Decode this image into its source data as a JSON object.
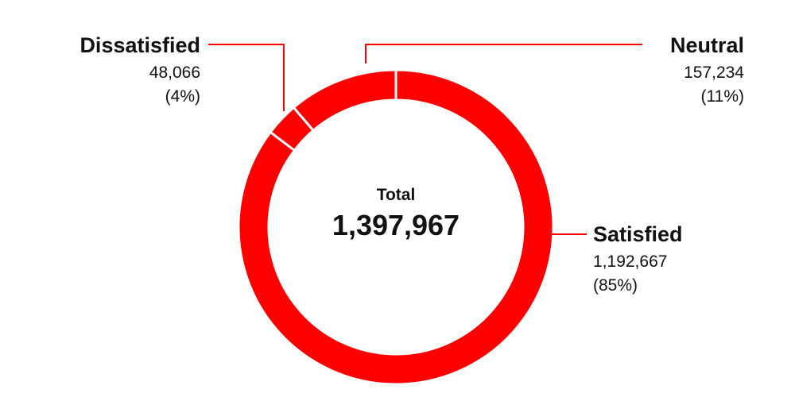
{
  "chart_data": {
    "type": "pie",
    "categories": [
      "Satisfied",
      "Dissatisfied",
      "Neutral"
    ],
    "values": [
      1192667,
      48066,
      157234
    ],
    "value_labels": [
      "1,192,667",
      "48,066",
      "157,234"
    ],
    "percent_labels": [
      "(85%)",
      "(4%)",
      "(11%)"
    ],
    "center": {
      "title": "Total",
      "value": "1,397,967"
    },
    "colors": {
      "slice": "#ff0000",
      "separator": "#ffffff",
      "leader": "#ff0000"
    }
  }
}
